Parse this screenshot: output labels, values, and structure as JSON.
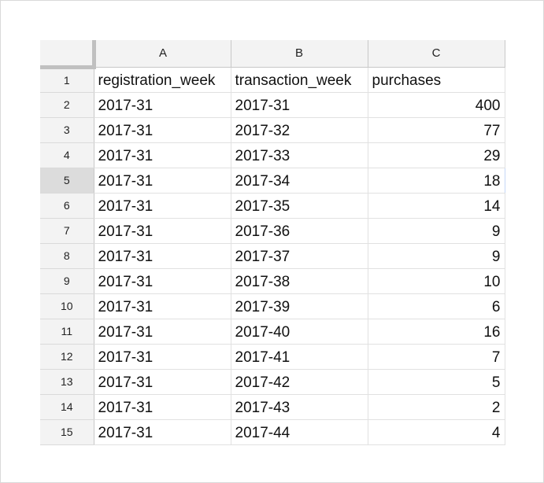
{
  "columns": [
    "A",
    "B",
    "C"
  ],
  "rows": [
    {
      "num": "1",
      "a": "registration_week",
      "b": "transaction_week",
      "c": "purchases",
      "header": true
    },
    {
      "num": "2",
      "a": "2017-31",
      "b": "2017-31",
      "c": "400"
    },
    {
      "num": "3",
      "a": "2017-31",
      "b": "2017-32",
      "c": "77"
    },
    {
      "num": "4",
      "a": "2017-31",
      "b": "2017-33",
      "c": "29"
    },
    {
      "num": "5",
      "a": "2017-31",
      "b": "2017-34",
      "c": "18",
      "selected": true
    },
    {
      "num": "6",
      "a": "2017-31",
      "b": "2017-35",
      "c": "14"
    },
    {
      "num": "7",
      "a": "2017-31",
      "b": "2017-36",
      "c": "9"
    },
    {
      "num": "8",
      "a": "2017-31",
      "b": "2017-37",
      "c": "9"
    },
    {
      "num": "9",
      "a": "2017-31",
      "b": "2017-38",
      "c": "10"
    },
    {
      "num": "10",
      "a": "2017-31",
      "b": "2017-39",
      "c": "6"
    },
    {
      "num": "11",
      "a": "2017-31",
      "b": "2017-40",
      "c": "16"
    },
    {
      "num": "12",
      "a": "2017-31",
      "b": "2017-41",
      "c": "7"
    },
    {
      "num": "13",
      "a": "2017-31",
      "b": "2017-42",
      "c": "5"
    },
    {
      "num": "14",
      "a": "2017-31",
      "b": "2017-43",
      "c": "2"
    },
    {
      "num": "15",
      "a": "2017-31",
      "b": "2017-44",
      "c": "4"
    }
  ]
}
